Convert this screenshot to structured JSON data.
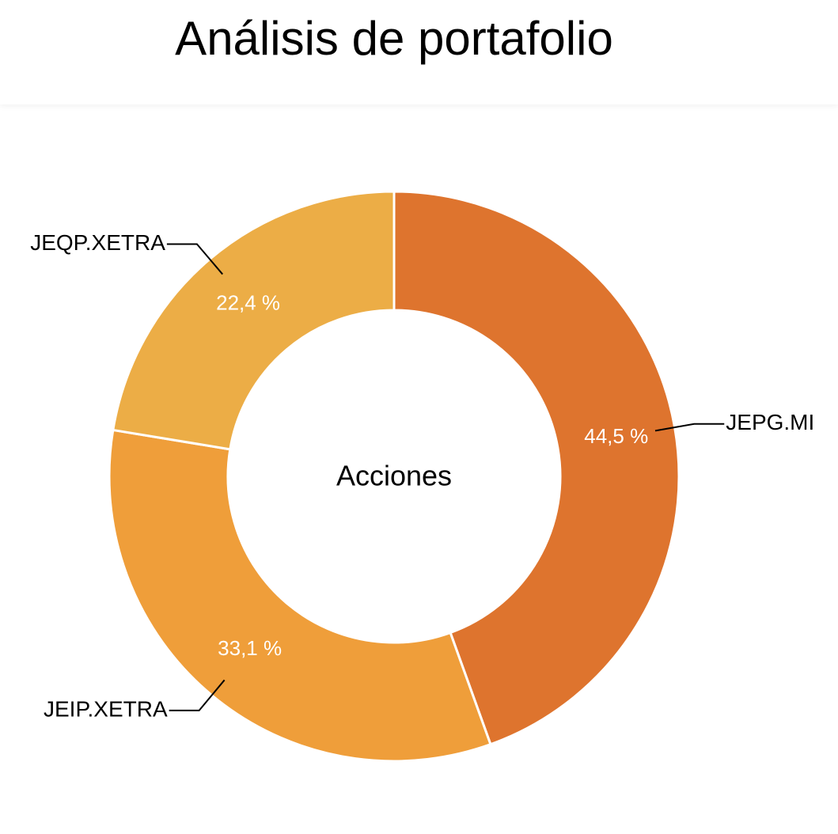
{
  "header": {
    "title": "Análisis de portafolio"
  },
  "chart_data": {
    "type": "pie",
    "center_label": "Acciones",
    "categories": [
      "JEPG.MI",
      "JEIP.XETRA",
      "JEQP.XETRA"
    ],
    "series": [
      {
        "values": [
          44.5,
          33.1,
          22.4
        ],
        "value_labels": [
          "44,5 %",
          "33,1 %",
          "22,4 %"
        ],
        "colors": [
          "#de742e",
          "#ef9e3a",
          "#ecad46"
        ]
      }
    ]
  }
}
